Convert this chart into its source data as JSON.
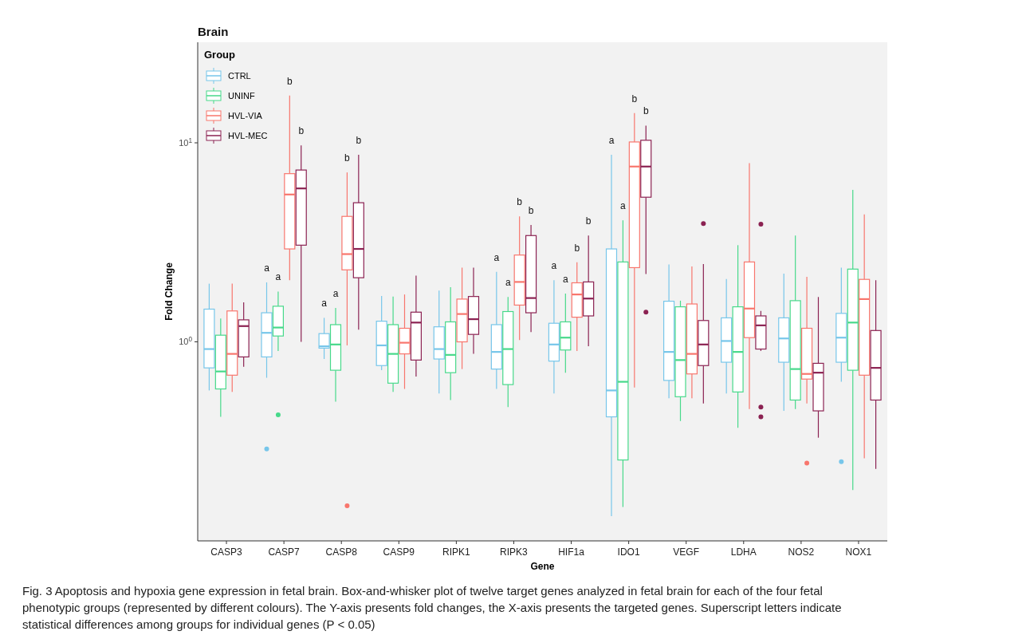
{
  "chart_data": {
    "type": "box",
    "title": "Brain",
    "xlabel": "Gene",
    "ylabel": "Fold Change",
    "legend_title": "Group",
    "legend": "top left",
    "log": true,
    "ylim": [
      0.1,
      32
    ],
    "yticks": [
      {
        "value": 1,
        "label": "10$^{0}$"
      },
      {
        "value": 10,
        "label": "10$^{1}$"
      }
    ],
    "categories": [
      "CASP3",
      "CASP7",
      "CASP8",
      "CASP9",
      "RIPK1",
      "RIPK3",
      "HIF1a",
      "IDO1",
      "VEGF",
      "LDHA",
      "NOS2",
      "NOX1"
    ],
    "series": [
      {
        "name": "CTRL",
        "color": "#77c6ea",
        "value_labels": [
          null,
          "a",
          "a",
          null,
          null,
          "a",
          "a",
          "a",
          null,
          null,
          null,
          null
        ],
        "boxes": [
          {
            "low": 0.57,
            "q1": 0.74,
            "median": 0.92,
            "q3": 1.46,
            "high": 1.96
          },
          {
            "low": 0.66,
            "q1": 0.84,
            "median": 1.11,
            "q3": 1.4,
            "high": 1.99,
            "outliers": [
              0.29
            ]
          },
          {
            "low": 0.82,
            "q1": 0.93,
            "median": 0.95,
            "q3": 1.1,
            "high": 1.32
          },
          {
            "low": 0.72,
            "q1": 0.76,
            "median": 0.96,
            "q3": 1.27,
            "high": 1.7
          },
          {
            "low": 0.55,
            "q1": 0.82,
            "median": 0.92,
            "q3": 1.19,
            "high": 1.81
          },
          {
            "low": 0.58,
            "q1": 0.73,
            "median": 0.89,
            "q3": 1.22,
            "high": 2.25
          },
          {
            "low": 0.55,
            "q1": 0.8,
            "median": 0.97,
            "q3": 1.24,
            "high": 2.04
          },
          {
            "low": 0.133,
            "q1": 0.42,
            "median": 0.57,
            "q3": 2.93,
            "high": 8.7
          },
          {
            "low": 0.52,
            "q1": 0.64,
            "median": 0.89,
            "q3": 1.6,
            "high": 2.45
          },
          {
            "low": 0.55,
            "q1": 0.79,
            "median": 1.01,
            "q3": 1.32,
            "high": 2.07
          },
          {
            "low": 0.45,
            "q1": 0.79,
            "median": 1.04,
            "q3": 1.32,
            "high": 2.2
          },
          {
            "low": 0.63,
            "q1": 0.79,
            "median": 1.05,
            "q3": 1.39,
            "high": 2.36,
            "outliers": [
              0.25
            ]
          }
        ]
      },
      {
        "name": "UNINF",
        "color": "#47d98a",
        "value_labels": [
          null,
          "a",
          "a",
          null,
          null,
          "a",
          "a",
          "a",
          null,
          null,
          null,
          null
        ],
        "boxes": [
          {
            "low": 0.42,
            "q1": 0.58,
            "median": 0.71,
            "q3": 1.08,
            "high": 1.31
          },
          {
            "low": 0.9,
            "q1": 1.07,
            "median": 1.18,
            "q3": 1.51,
            "high": 1.79,
            "outliers": [
              0.43
            ]
          },
          {
            "low": 0.5,
            "q1": 0.72,
            "median": 0.97,
            "q3": 1.22,
            "high": 1.48
          },
          {
            "low": 0.56,
            "q1": 0.62,
            "median": 0.87,
            "q3": 1.22,
            "high": 1.69
          },
          {
            "low": 0.51,
            "q1": 0.7,
            "median": 0.86,
            "q3": 1.26,
            "high": 1.88
          },
          {
            "low": 0.47,
            "q1": 0.61,
            "median": 0.92,
            "q3": 1.42,
            "high": 1.68
          },
          {
            "low": 0.7,
            "q1": 0.91,
            "median": 1.05,
            "q3": 1.26,
            "high": 1.75
          },
          {
            "low": 0.148,
            "q1": 0.255,
            "median": 0.63,
            "q3": 2.52,
            "high": 4.08
          },
          {
            "low": 0.4,
            "q1": 0.53,
            "median": 0.81,
            "q3": 1.5,
            "high": 1.61
          },
          {
            "low": 0.37,
            "q1": 0.56,
            "median": 0.89,
            "q3": 1.5,
            "high": 3.06
          },
          {
            "low": 0.46,
            "q1": 0.51,
            "median": 0.73,
            "q3": 1.61,
            "high": 3.42
          },
          {
            "low": 0.18,
            "q1": 0.72,
            "median": 1.25,
            "q3": 2.32,
            "high": 5.8
          }
        ]
      },
      {
        "name": "HVL-VIA",
        "color": "#f8766d",
        "value_labels": [
          null,
          "b",
          "b",
          null,
          null,
          "b",
          "b",
          "b",
          null,
          null,
          null,
          null
        ],
        "boxes": [
          {
            "low": 0.56,
            "q1": 0.68,
            "median": 0.87,
            "q3": 1.43,
            "high": 1.96
          },
          {
            "low": 2.04,
            "q1": 2.93,
            "median": 5.5,
            "q3": 7.0,
            "high": 17.3
          },
          {
            "low": 0.96,
            "q1": 2.3,
            "median": 2.76,
            "q3": 4.27,
            "high": 7.1,
            "outliers": [
              0.15
            ]
          },
          {
            "low": 0.58,
            "q1": 0.87,
            "median": 0.99,
            "q3": 1.17,
            "high": 1.73
          },
          {
            "low": 0.73,
            "q1": 1.0,
            "median": 1.38,
            "q3": 1.64,
            "high": 2.36
          },
          {
            "low": 1.02,
            "q1": 1.53,
            "median": 2.0,
            "q3": 2.73,
            "high": 4.27
          },
          {
            "low": 0.9,
            "q1": 1.33,
            "median": 1.73,
            "q3": 1.98,
            "high": 2.51
          },
          {
            "low": 0.59,
            "q1": 2.36,
            "median": 7.6,
            "q3": 10.1,
            "high": 14.1
          },
          {
            "low": 0.52,
            "q1": 0.69,
            "median": 0.87,
            "q3": 1.55,
            "high": 2.39
          },
          {
            "low": 0.46,
            "q1": 1.05,
            "median": 1.47,
            "q3": 2.52,
            "high": 7.9
          },
          {
            "low": 0.49,
            "q1": 0.65,
            "median": 0.69,
            "q3": 1.17,
            "high": 2.12,
            "outliers": [
              0.246
            ]
          },
          {
            "low": 0.26,
            "q1": 0.68,
            "median": 1.64,
            "q3": 2.06,
            "high": 4.37
          }
        ]
      },
      {
        "name": "HVL-MEC",
        "color": "#8b2252",
        "value_labels": [
          null,
          "b",
          "b",
          null,
          null,
          "b",
          "b",
          "b",
          null,
          null,
          null,
          null
        ],
        "boxes": [
          {
            "low": 0.75,
            "q1": 0.84,
            "median": 1.2,
            "q3": 1.29,
            "high": 1.58
          },
          {
            "low": 1.0,
            "q1": 3.06,
            "median": 5.9,
            "q3": 7.3,
            "high": 9.7
          },
          {
            "low": 1.15,
            "q1": 2.1,
            "median": 2.93,
            "q3": 5.0,
            "high": 8.7
          },
          {
            "low": 0.67,
            "q1": 0.81,
            "median": 1.25,
            "q3": 1.41,
            "high": 2.15
          },
          {
            "low": 0.87,
            "q1": 1.09,
            "median": 1.3,
            "q3": 1.69,
            "high": 2.36
          },
          {
            "low": 1.12,
            "q1": 1.4,
            "median": 1.66,
            "q3": 3.42,
            "high": 3.87
          },
          {
            "low": 0.95,
            "q1": 1.35,
            "median": 1.65,
            "q3": 2.0,
            "high": 3.42
          },
          {
            "low": 2.19,
            "q1": 5.33,
            "median": 7.6,
            "q3": 10.3,
            "high": 12.2,
            "outliers": [
              1.41
            ]
          },
          {
            "low": 0.49,
            "q1": 0.76,
            "median": 0.97,
            "q3": 1.28,
            "high": 2.46,
            "outliers": [
              3.93
            ]
          },
          {
            "low": 0.9,
            "q1": 0.92,
            "median": 1.21,
            "q3": 1.35,
            "high": 1.43,
            "outliers": [
              3.9,
              0.47,
              0.42
            ]
          },
          {
            "low": 0.33,
            "q1": 0.45,
            "median": 0.7,
            "q3": 0.78,
            "high": 1.68
          },
          {
            "low": 0.23,
            "q1": 0.51,
            "median": 0.74,
            "q3": 1.14,
            "high": 2.04
          }
        ]
      }
    ],
    "annotations": [
      "Fig. 3 Apoptosis and hypoxia gene expression in fetal brain. Box-and-whisker plot of twelve target genes analyzed in fetal brain for each of the four fetal phenotypic groups (represented by different colours). The Y-axis presents fold changes, the X-axis presents the targeted genes. Superscript letters indicate statistical differences among groups for individual genes (P < 0.05)"
    ]
  }
}
